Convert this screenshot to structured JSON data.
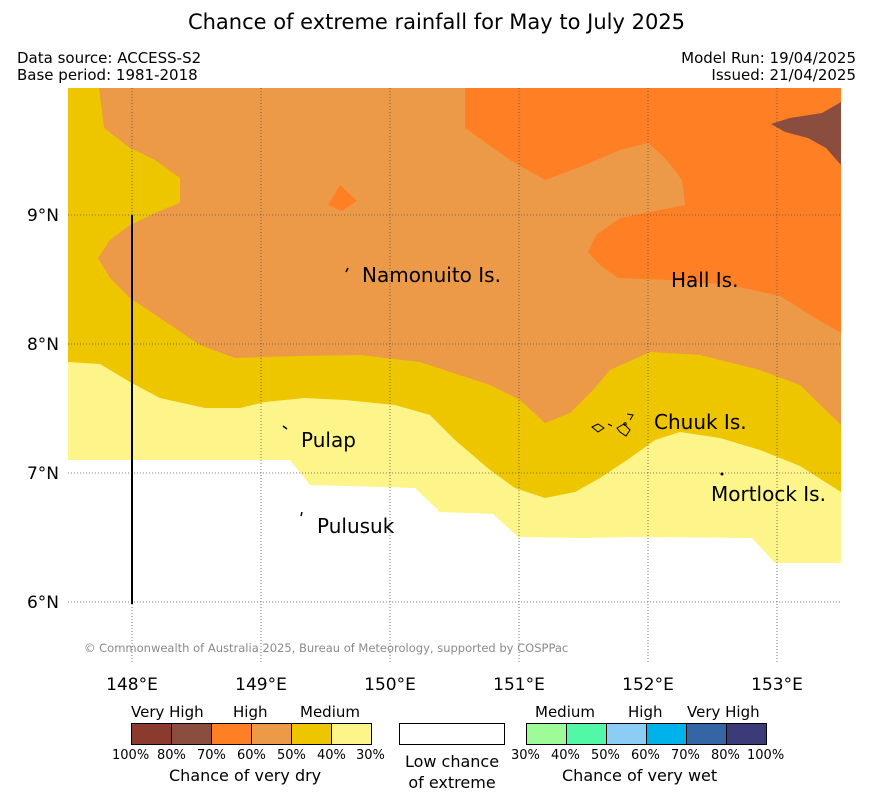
{
  "header": {
    "title": "Chance of extreme rainfall for May to July 2025",
    "source": "Data source: ACCESS-S2",
    "base_period": "Base period: 1981-2018",
    "model_run": "Model Run: 19/04/2025",
    "issued": "Issued: 21/04/2025"
  },
  "map": {
    "lat_labels": [
      "9°N",
      "8°N",
      "7°N",
      "6°N"
    ],
    "lon_labels": [
      "148°E",
      "149°E",
      "150°E",
      "151°E",
      "152°E",
      "153°E"
    ],
    "places": [
      "Namonuito Is.",
      "Hall Is.",
      "Pulap",
      "Chuuk Is.",
      "Mortlock Is.",
      "Pulusuk"
    ],
    "copyright": "© Commonwealth of Australia 2025, Bureau of Meteorology, supported by COSPPac",
    "colors": {
      "dry_very_high_dark": "#8b3a2e",
      "dry_very_high": "#8b4d3e",
      "dry_high_dark": "#ff7f24",
      "dry_high": "#ec9a48",
      "dry_medium_dark": "#edc600",
      "dry_medium": "#fdf58a",
      "low": "#ffffff"
    }
  },
  "legend": {
    "dry": {
      "headings": [
        "Very High",
        "High",
        "Medium"
      ],
      "ticks": [
        "100%",
        "80%",
        "70%",
        "60%",
        "50%",
        "40%",
        "30%"
      ],
      "caption": "Chance of very dry",
      "colors": [
        "#8b3a2e",
        "#8b4d3e",
        "#ff7f24",
        "#ec9a48",
        "#edc600",
        "#fdf58a"
      ]
    },
    "low": {
      "line1": "Low chance",
      "line2": "of extreme"
    },
    "wet": {
      "headings": [
        "Medium",
        "High",
        "Very High"
      ],
      "ticks": [
        "30%",
        "40%",
        "50%",
        "60%",
        "70%",
        "80%",
        "100%"
      ],
      "caption": "Chance of very wet",
      "colors": [
        "#9dfb98",
        "#52f8a6",
        "#8ccdf6",
        "#00b2ea",
        "#3465a4",
        "#3a3b78"
      ]
    }
  }
}
